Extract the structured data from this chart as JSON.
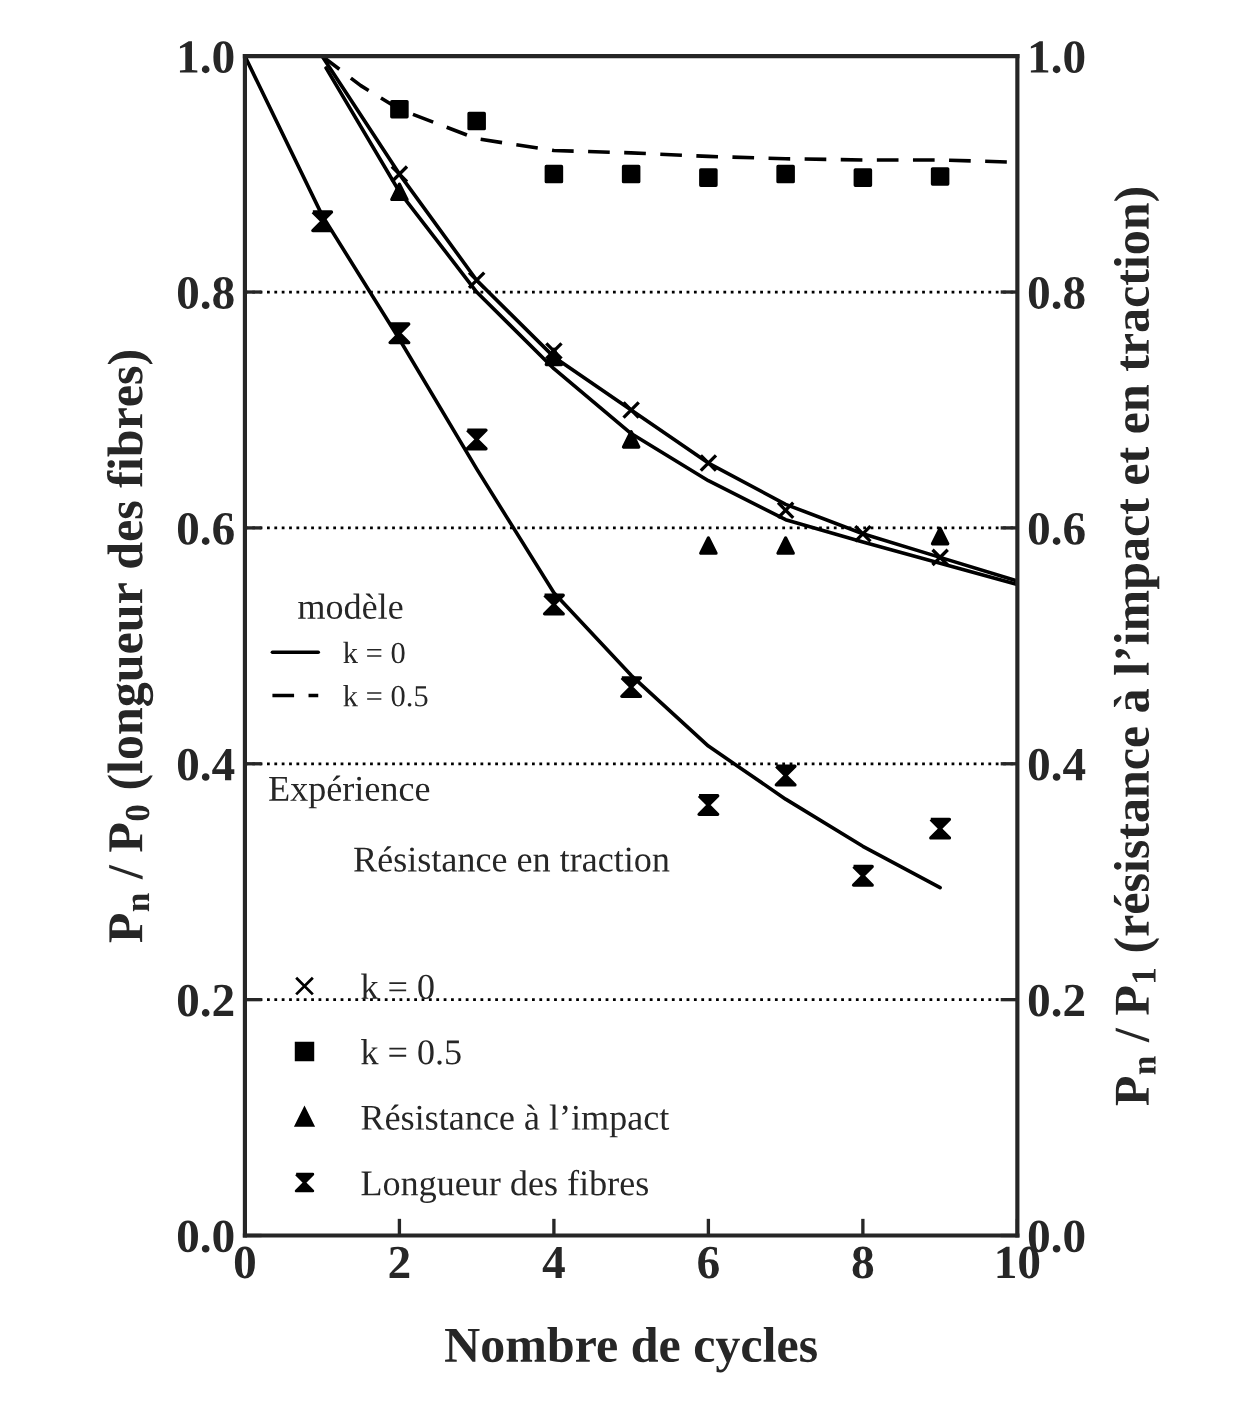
{
  "chart_data": {
    "type": "line",
    "xlabel": "Nombre de cycles",
    "ylabel": "P$_{n}$ / P$_{0}$ (longueur des fibres)",
    "y2label": "P$_{n}$ / P$_{1}$ (résistance à l’impact et en traction)",
    "legend_title": "modèle",
    "legend": "left",
    "grid": "y",
    "xlim": [
      0,
      10
    ],
    "xticks": [
      0,
      2,
      4,
      6,
      8,
      10
    ],
    "ylim": [
      0.0,
      1.0
    ],
    "yticks": [
      {
        "value": 0.0,
        "label": "0.0"
      },
      {
        "value": 0.2,
        "label": "0.2"
      },
      {
        "value": 0.4,
        "label": "0.4"
      },
      {
        "value": 0.6,
        "label": "0.6"
      },
      {
        "value": 0.8,
        "label": "0.8"
      },
      {
        "value": 1.0,
        "label": "1.0"
      }
    ],
    "y2lim": [
      0.0,
      1.0
    ],
    "y2ticks": [
      {
        "value": 0.0,
        "label": "0.0"
      },
      {
        "value": 0.2,
        "label": "0.2"
      },
      {
        "value": 0.4,
        "label": "0.4"
      },
      {
        "value": 0.6,
        "label": "0.6"
      },
      {
        "value": 0.8,
        "label": "0.8"
      },
      {
        "value": 1.0,
        "label": "1.0"
      }
    ],
    "annotations": [
      "Expérience",
      "Résistance en traction"
    ],
    "series": [
      {
        "name": "k = 0",
        "color": "#000000",
        "line_style": "solid",
        "marker": "none",
        "x": [
          1,
          2,
          3,
          4,
          5,
          6,
          7,
          8,
          9,
          10
        ],
        "values": [
          1.0,
          0.9,
          0.81,
          0.745,
          0.7,
          0.655,
          0.62,
          0.595,
          0.575,
          0.555
        ]
      },
      {
        "color": "#000000",
        "line_style": "solid",
        "marker": "none",
        "x": [
          1.05,
          2,
          3,
          4,
          5,
          6,
          7,
          8,
          9,
          10
        ],
        "values": [
          0.99,
          0.885,
          0.8,
          0.735,
          0.68,
          0.64,
          0.607,
          0.588,
          0.57,
          0.552
        ]
      },
      {
        "color": "#000000",
        "line_style": "solid",
        "marker": "none",
        "x": [
          0,
          1,
          2,
          3,
          4,
          5,
          6,
          7,
          8,
          9
        ],
        "values": [
          1.0,
          0.865,
          0.76,
          0.65,
          0.545,
          0.475,
          0.415,
          0.37,
          0.33,
          0.295
        ]
      },
      {
        "name": "k = 0.5",
        "color": "#000000",
        "line_style": "dashed",
        "marker": "none",
        "x": [
          1,
          1.5,
          2,
          3,
          4,
          5,
          6,
          7,
          8,
          9,
          10
        ],
        "values": [
          1.0,
          0.975,
          0.955,
          0.93,
          0.92,
          0.918,
          0.915,
          0.913,
          0.912,
          0.912,
          0.91
        ]
      },
      {
        "name": "k = 0",
        "type": "scatter",
        "color": "#000000",
        "marker": "cross",
        "x": [
          2,
          3,
          4,
          5,
          6,
          7,
          8,
          9
        ],
        "values": [
          0.9,
          0.81,
          0.75,
          0.7,
          0.655,
          0.615,
          0.595,
          0.575
        ]
      },
      {
        "name": "k = 0.5",
        "type": "scatter",
        "color": "#000000",
        "marker": "square",
        "x": [
          2,
          3,
          4,
          5,
          6,
          7,
          8,
          9
        ],
        "values": [
          0.955,
          0.945,
          0.9,
          0.9,
          0.897,
          0.9,
          0.897,
          0.898
        ]
      },
      {
        "name": "Résistance à l’impact",
        "type": "scatter",
        "color": "#000000",
        "marker": "triangle",
        "x": [
          2,
          3,
          4,
          5,
          6,
          7,
          9
        ],
        "values": [
          0.885,
          null,
          0.745,
          0.675,
          0.585,
          0.585,
          0.593
        ]
      },
      {
        "name": "Longueur des fibres",
        "type": "scatter",
        "color": "#000000",
        "x": [
          1,
          2,
          3,
          4,
          5,
          6,
          7,
          8,
          9
        ],
        "values": [
          0.86,
          0.765,
          0.675,
          0.535,
          0.465,
          0.365,
          0.39,
          0.305,
          0.345
        ]
      }
    ]
  }
}
